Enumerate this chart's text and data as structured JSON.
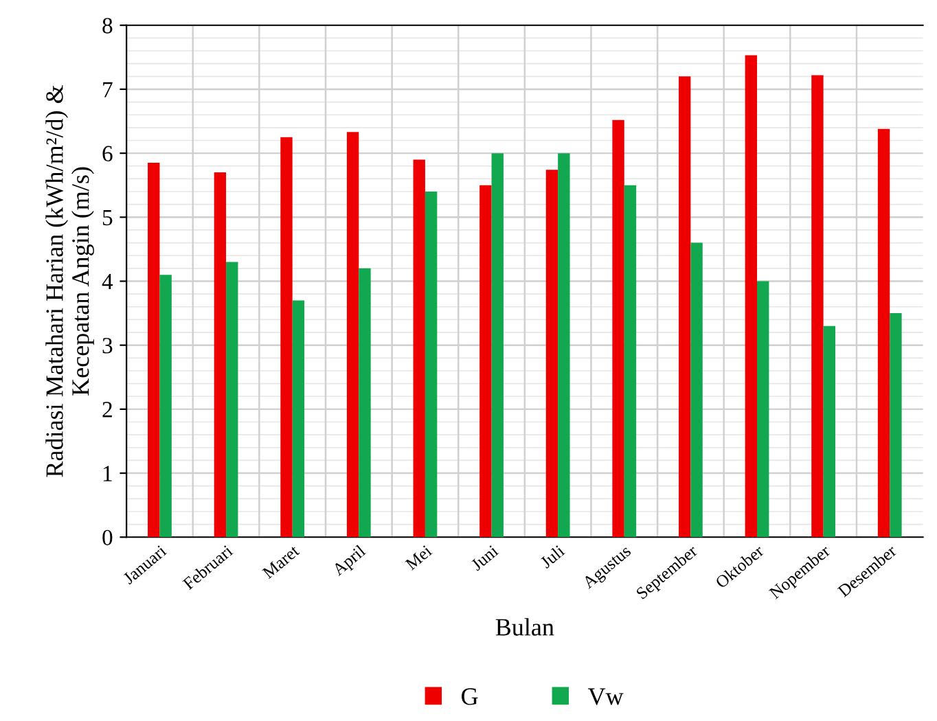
{
  "chart_data": {
    "type": "bar",
    "xlabel": "Bulan",
    "ylabel": "Radiasi Matahari Harian (kWh/m²/d) &\nKecepatan Angin (m/s)",
    "categories": [
      "Januari",
      "Februari",
      "Maret",
      "April",
      "Mei",
      "Juni",
      "Juli",
      "Agustus",
      "September",
      "Oktober",
      "Nopember",
      "Desember"
    ],
    "series": [
      {
        "name": "G",
        "color": "#ee0000",
        "values": [
          5.85,
          5.7,
          6.25,
          6.33,
          5.9,
          5.5,
          5.74,
          6.52,
          7.2,
          7.53,
          7.22,
          6.38
        ]
      },
      {
        "name": "Vw",
        "color": "#11a84f",
        "values": [
          4.1,
          4.3,
          3.7,
          4.2,
          5.4,
          6.0,
          6.0,
          5.5,
          4.6,
          4.0,
          3.3,
          3.5
        ]
      }
    ],
    "ylim": [
      0,
      8
    ],
    "yticks": [
      0,
      1,
      2,
      3,
      4,
      5,
      6,
      7,
      8
    ],
    "grid": true,
    "legend": "bottom"
  }
}
